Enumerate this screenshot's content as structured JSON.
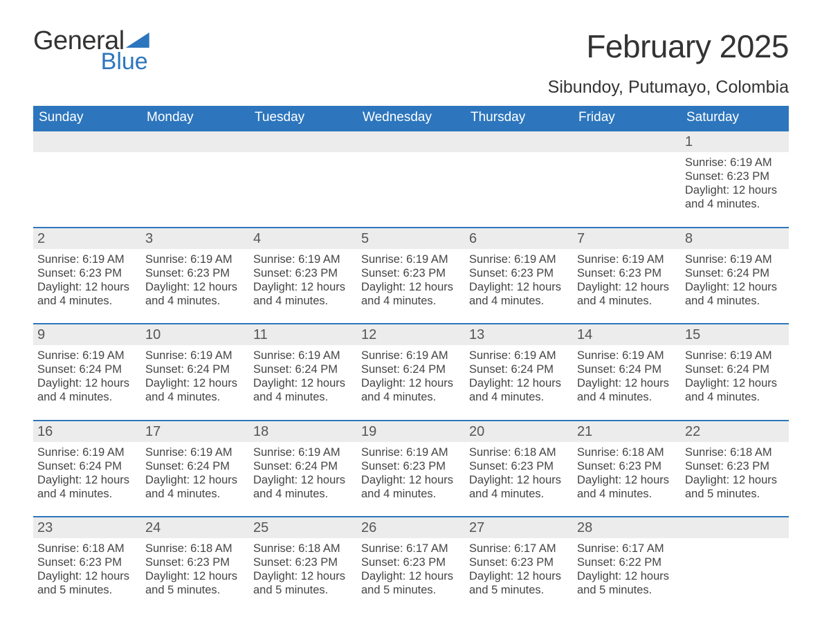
{
  "logo": {
    "word1": "General",
    "word2": "Blue"
  },
  "title": "February 2025",
  "location": "Sibundoy, Putumayo, Colombia",
  "colors": {
    "brand_blue": "#2d76bd",
    "band_gray": "#ececec",
    "text_dark": "#333333",
    "text_body": "#444444",
    "background": "#ffffff"
  },
  "typography": {
    "title_fontsize_pt": 34,
    "location_fontsize_pt": 19,
    "header_fontsize_pt": 14,
    "daynum_fontsize_pt": 15,
    "body_fontsize_pt": 12
  },
  "calendar": {
    "type": "table",
    "columns": [
      "Sunday",
      "Monday",
      "Tuesday",
      "Wednesday",
      "Thursday",
      "Friday",
      "Saturday"
    ],
    "weeks": [
      [
        {
          "empty": true
        },
        {
          "empty": true
        },
        {
          "empty": true
        },
        {
          "empty": true
        },
        {
          "empty": true
        },
        {
          "empty": true
        },
        {
          "day": "1",
          "sunrise": "Sunrise: 6:19 AM",
          "sunset": "Sunset: 6:23 PM",
          "daylight1": "Daylight: 12 hours",
          "daylight2": "and 4 minutes."
        }
      ],
      [
        {
          "day": "2",
          "sunrise": "Sunrise: 6:19 AM",
          "sunset": "Sunset: 6:23 PM",
          "daylight1": "Daylight: 12 hours",
          "daylight2": "and 4 minutes."
        },
        {
          "day": "3",
          "sunrise": "Sunrise: 6:19 AM",
          "sunset": "Sunset: 6:23 PM",
          "daylight1": "Daylight: 12 hours",
          "daylight2": "and 4 minutes."
        },
        {
          "day": "4",
          "sunrise": "Sunrise: 6:19 AM",
          "sunset": "Sunset: 6:23 PM",
          "daylight1": "Daylight: 12 hours",
          "daylight2": "and 4 minutes."
        },
        {
          "day": "5",
          "sunrise": "Sunrise: 6:19 AM",
          "sunset": "Sunset: 6:23 PM",
          "daylight1": "Daylight: 12 hours",
          "daylight2": "and 4 minutes."
        },
        {
          "day": "6",
          "sunrise": "Sunrise: 6:19 AM",
          "sunset": "Sunset: 6:23 PM",
          "daylight1": "Daylight: 12 hours",
          "daylight2": "and 4 minutes."
        },
        {
          "day": "7",
          "sunrise": "Sunrise: 6:19 AM",
          "sunset": "Sunset: 6:23 PM",
          "daylight1": "Daylight: 12 hours",
          "daylight2": "and 4 minutes."
        },
        {
          "day": "8",
          "sunrise": "Sunrise: 6:19 AM",
          "sunset": "Sunset: 6:24 PM",
          "daylight1": "Daylight: 12 hours",
          "daylight2": "and 4 minutes."
        }
      ],
      [
        {
          "day": "9",
          "sunrise": "Sunrise: 6:19 AM",
          "sunset": "Sunset: 6:24 PM",
          "daylight1": "Daylight: 12 hours",
          "daylight2": "and 4 minutes."
        },
        {
          "day": "10",
          "sunrise": "Sunrise: 6:19 AM",
          "sunset": "Sunset: 6:24 PM",
          "daylight1": "Daylight: 12 hours",
          "daylight2": "and 4 minutes."
        },
        {
          "day": "11",
          "sunrise": "Sunrise: 6:19 AM",
          "sunset": "Sunset: 6:24 PM",
          "daylight1": "Daylight: 12 hours",
          "daylight2": "and 4 minutes."
        },
        {
          "day": "12",
          "sunrise": "Sunrise: 6:19 AM",
          "sunset": "Sunset: 6:24 PM",
          "daylight1": "Daylight: 12 hours",
          "daylight2": "and 4 minutes."
        },
        {
          "day": "13",
          "sunrise": "Sunrise: 6:19 AM",
          "sunset": "Sunset: 6:24 PM",
          "daylight1": "Daylight: 12 hours",
          "daylight2": "and 4 minutes."
        },
        {
          "day": "14",
          "sunrise": "Sunrise: 6:19 AM",
          "sunset": "Sunset: 6:24 PM",
          "daylight1": "Daylight: 12 hours",
          "daylight2": "and 4 minutes."
        },
        {
          "day": "15",
          "sunrise": "Sunrise: 6:19 AM",
          "sunset": "Sunset: 6:24 PM",
          "daylight1": "Daylight: 12 hours",
          "daylight2": "and 4 minutes."
        }
      ],
      [
        {
          "day": "16",
          "sunrise": "Sunrise: 6:19 AM",
          "sunset": "Sunset: 6:24 PM",
          "daylight1": "Daylight: 12 hours",
          "daylight2": "and 4 minutes."
        },
        {
          "day": "17",
          "sunrise": "Sunrise: 6:19 AM",
          "sunset": "Sunset: 6:24 PM",
          "daylight1": "Daylight: 12 hours",
          "daylight2": "and 4 minutes."
        },
        {
          "day": "18",
          "sunrise": "Sunrise: 6:19 AM",
          "sunset": "Sunset: 6:24 PM",
          "daylight1": "Daylight: 12 hours",
          "daylight2": "and 4 minutes."
        },
        {
          "day": "19",
          "sunrise": "Sunrise: 6:19 AM",
          "sunset": "Sunset: 6:23 PM",
          "daylight1": "Daylight: 12 hours",
          "daylight2": "and 4 minutes."
        },
        {
          "day": "20",
          "sunrise": "Sunrise: 6:18 AM",
          "sunset": "Sunset: 6:23 PM",
          "daylight1": "Daylight: 12 hours",
          "daylight2": "and 4 minutes."
        },
        {
          "day": "21",
          "sunrise": "Sunrise: 6:18 AM",
          "sunset": "Sunset: 6:23 PM",
          "daylight1": "Daylight: 12 hours",
          "daylight2": "and 4 minutes."
        },
        {
          "day": "22",
          "sunrise": "Sunrise: 6:18 AM",
          "sunset": "Sunset: 6:23 PM",
          "daylight1": "Daylight: 12 hours",
          "daylight2": "and 5 minutes."
        }
      ],
      [
        {
          "day": "23",
          "sunrise": "Sunrise: 6:18 AM",
          "sunset": "Sunset: 6:23 PM",
          "daylight1": "Daylight: 12 hours",
          "daylight2": "and 5 minutes."
        },
        {
          "day": "24",
          "sunrise": "Sunrise: 6:18 AM",
          "sunset": "Sunset: 6:23 PM",
          "daylight1": "Daylight: 12 hours",
          "daylight2": "and 5 minutes."
        },
        {
          "day": "25",
          "sunrise": "Sunrise: 6:18 AM",
          "sunset": "Sunset: 6:23 PM",
          "daylight1": "Daylight: 12 hours",
          "daylight2": "and 5 minutes."
        },
        {
          "day": "26",
          "sunrise": "Sunrise: 6:17 AM",
          "sunset": "Sunset: 6:23 PM",
          "daylight1": "Daylight: 12 hours",
          "daylight2": "and 5 minutes."
        },
        {
          "day": "27",
          "sunrise": "Sunrise: 6:17 AM",
          "sunset": "Sunset: 6:23 PM",
          "daylight1": "Daylight: 12 hours",
          "daylight2": "and 5 minutes."
        },
        {
          "day": "28",
          "sunrise": "Sunrise: 6:17 AM",
          "sunset": "Sunset: 6:22 PM",
          "daylight1": "Daylight: 12 hours",
          "daylight2": "and 5 minutes."
        },
        {
          "empty": true
        }
      ]
    ]
  }
}
